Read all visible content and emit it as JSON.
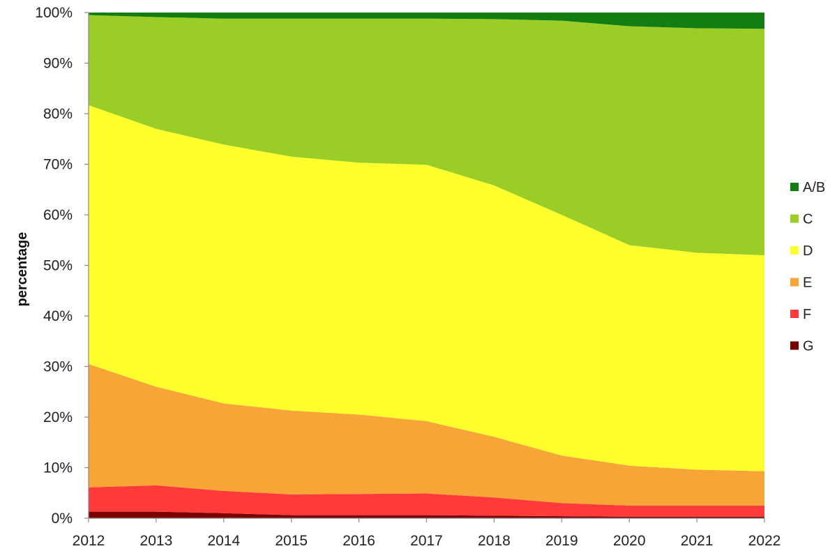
{
  "chart_data": {
    "type": "area",
    "stacked": true,
    "percent_stacked": true,
    "x": [
      "2012",
      "2013",
      "2014",
      "2015",
      "2016",
      "2017",
      "2018",
      "2019",
      "2020",
      "2021",
      "2022"
    ],
    "ylabel": "percentage",
    "xlabel": "",
    "title": "",
    "ylim": [
      0,
      100
    ],
    "y_tick_labels": [
      "0%",
      "10%",
      "20%",
      "30%",
      "40%",
      "50%",
      "60%",
      "70%",
      "80%",
      "90%",
      "100%"
    ],
    "grid": false,
    "legend_position": "right",
    "series": [
      {
        "name": "G",
        "color": "#7b0000",
        "values": [
          1.3,
          1.3,
          1.0,
          0.6,
          0.6,
          0.6,
          0.5,
          0.4,
          0.3,
          0.3,
          0.3
        ]
      },
      {
        "name": "F",
        "color": "#ff3a3a",
        "values": [
          4.8,
          5.2,
          4.4,
          4.1,
          4.2,
          4.3,
          3.6,
          2.6,
          2.2,
          2.2,
          2.2
        ]
      },
      {
        "name": "E",
        "color": "#f8a537",
        "values": [
          24.4,
          19.5,
          17.3,
          16.6,
          15.7,
          14.3,
          12.0,
          9.4,
          7.9,
          7.1,
          6.8
        ]
      },
      {
        "name": "D",
        "color": "#ffff2e",
        "values": [
          51.2,
          51.0,
          51.2,
          50.2,
          49.8,
          50.7,
          49.7,
          47.6,
          43.6,
          42.9,
          42.7
        ]
      },
      {
        "name": "C",
        "color": "#9acd26",
        "values": [
          17.8,
          22.1,
          24.9,
          27.3,
          28.5,
          28.9,
          32.9,
          38.4,
          43.3,
          44.4,
          44.8
        ]
      },
      {
        "name": "A/B",
        "color": "#137d13",
        "values": [
          0.5,
          0.9,
          1.2,
          1.2,
          1.2,
          1.2,
          1.3,
          1.6,
          2.7,
          3.1,
          3.2
        ]
      }
    ],
    "legend_order": [
      "A/B",
      "C",
      "D",
      "E",
      "F",
      "G"
    ]
  }
}
